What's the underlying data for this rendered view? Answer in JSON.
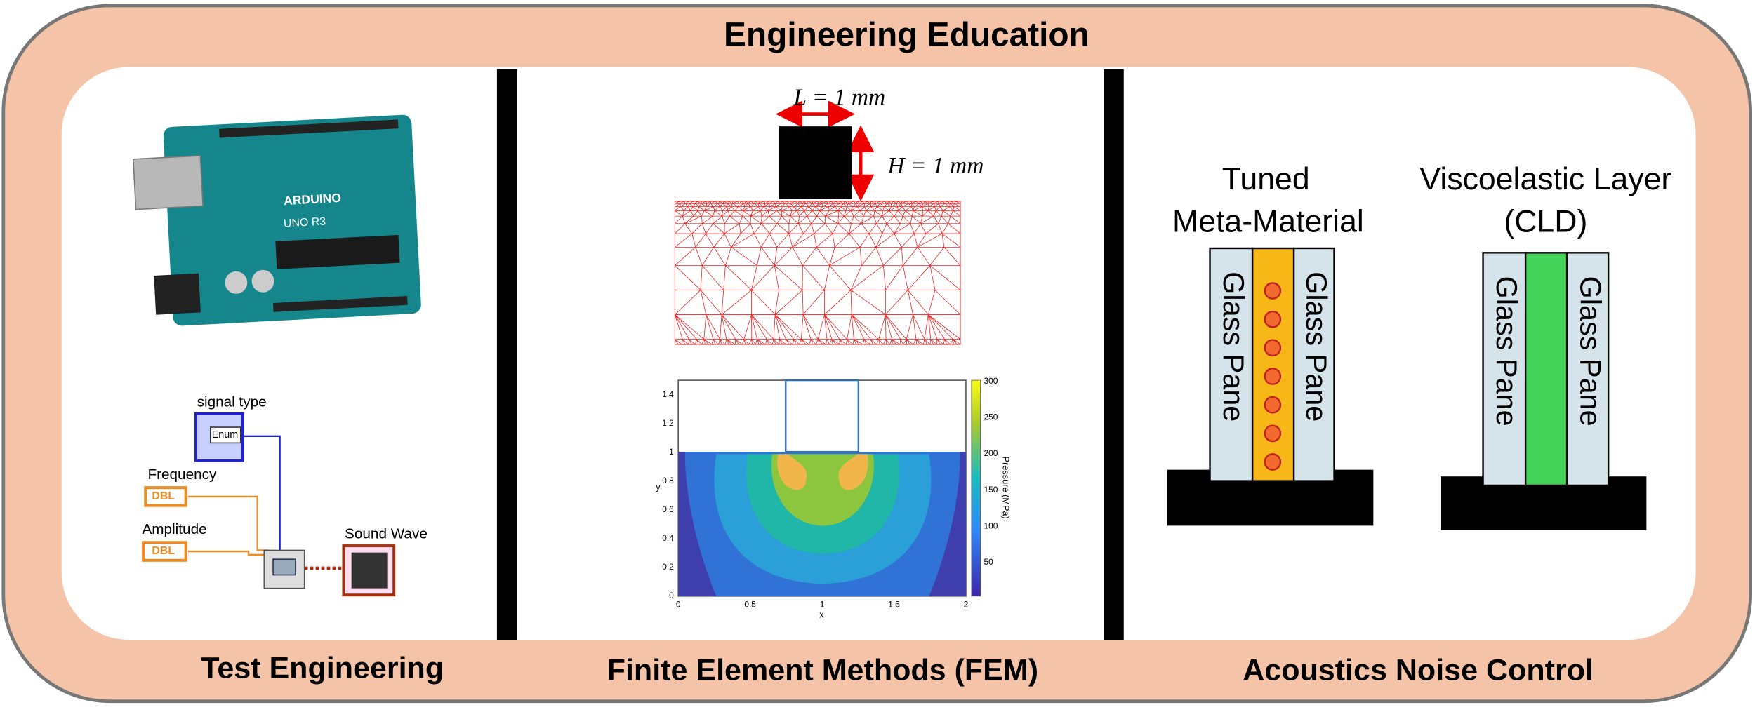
{
  "header": {
    "title": "Engineering Education"
  },
  "panels": [
    {
      "label": "Test Engineering",
      "arduino": {
        "brand": "ARDUINO",
        "model": "UNO R3"
      },
      "labview": {
        "signal": "signal type",
        "enum": "Enum",
        "frequency": "Frequency",
        "amplitude": "Amplitude",
        "dbl": "DBL",
        "output": "Sound Wave"
      }
    },
    {
      "label": "Finite Element Methods (FEM)",
      "dimensions": {
        "length": "L = 1 mm",
        "height": "H = 1 mm"
      },
      "plot": {
        "x_label": "x",
        "y_label": "y",
        "colorbar_label": "Pressure (MPa)",
        "x_ticks": [
          "0",
          "0.5",
          "1",
          "1.5",
          "2"
        ],
        "y_ticks": [
          "0",
          "0.2",
          "0.4",
          "0.6",
          "0.8",
          "1",
          "1.2",
          "1.4"
        ],
        "colorbar_ticks": [
          "50",
          "100",
          "150",
          "200",
          "250",
          "300"
        ]
      }
    },
    {
      "label": "Acoustics Noise Control",
      "designs": [
        {
          "title": [
            "Tuned",
            "Meta-Material"
          ],
          "panes": [
            "Glass Pane",
            "Glass Pane"
          ]
        },
        {
          "title": [
            "Viscoelastic Layer",
            "(CLD)"
          ],
          "panes": [
            "Glass Pane",
            "Glass Pane"
          ]
        }
      ]
    }
  ]
}
